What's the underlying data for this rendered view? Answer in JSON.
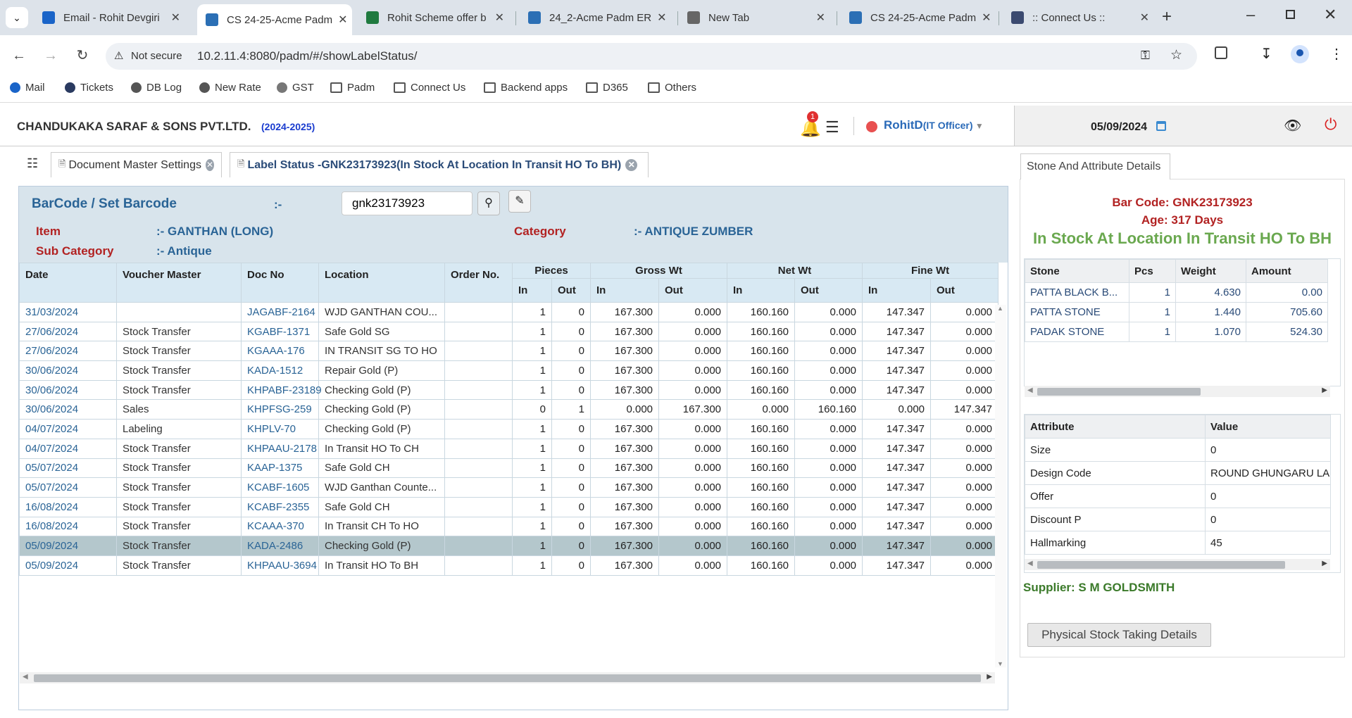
{
  "browser": {
    "tabs": [
      {
        "title": "Email - Rohit Devgiri",
        "fav": "#1a64c8"
      },
      {
        "title": "CS 24-25-Acme Padm",
        "fav": "#2b6fb5"
      },
      {
        "title": "Rohit Scheme offer b",
        "fav": "#1f7a3f"
      },
      {
        "title": "24_2-Acme Padm ER",
        "fav": "#2b6fb5"
      },
      {
        "title": "New Tab",
        "fav": "#666"
      },
      {
        "title": "CS 24-25-Acme Padm",
        "fav": "#2b6fb5"
      },
      {
        "title": ":: Connect Us ::",
        "fav": "#3b4a70"
      }
    ],
    "security": "Not secure",
    "url": "10.2.11.4:8080/padm/#/showLabelStatus/",
    "bookmarks": [
      "Mail",
      "Tickets",
      "DB Log",
      "New Rate",
      "GST",
      "Padm",
      "Connect Us",
      "Backend apps",
      "D365",
      "Others"
    ]
  },
  "header": {
    "company": "CHANDUKAKA SARAF & SONS PVT.LTD.",
    "year": "(2024-2025)",
    "notif_count": "1",
    "user": "RohitD",
    "role": "(IT Officer)",
    "date": "05/09/2024"
  },
  "apptabs": {
    "doc_master": "Document Master Settings",
    "label_status": "Label Status -GNK23173923(In Stock At Location In Transit HO To BH)"
  },
  "barcode": {
    "label": "BarCode / Set Barcode",
    "sep": ":-",
    "value": "gnk23173923",
    "item_label": "Item",
    "item_value": ":- GANTHAN (LONG)",
    "category_label": "Category",
    "category_value": ":- ANTIQUE ZUMBER",
    "subcat_label": "Sub Category",
    "subcat_value": ":- Antique"
  },
  "table": {
    "headers": {
      "date": "Date",
      "voucher": "Voucher Master",
      "doc": "Doc No",
      "location": "Location",
      "order": "Order No.",
      "pieces": "Pieces",
      "gross": "Gross Wt",
      "net": "Net Wt",
      "fine": "Fine Wt",
      "in": "In",
      "out": "Out"
    },
    "rows": [
      {
        "date": "31/03/2024",
        "voucher": "",
        "doc": "JAGABF-2164",
        "location": "WJD GANTHAN COU...",
        "order": "",
        "pin": "1",
        "pout": "0",
        "gin": "167.300",
        "gout": "0.000",
        "nin": "160.160",
        "nout": "0.000",
        "fin": "147.347",
        "fout": "0.000"
      },
      {
        "date": "27/06/2024",
        "voucher": "Stock Transfer",
        "doc": "KGABF-1371",
        "location": "Safe Gold SG",
        "order": "",
        "pin": "1",
        "pout": "0",
        "gin": "167.300",
        "gout": "0.000",
        "nin": "160.160",
        "nout": "0.000",
        "fin": "147.347",
        "fout": "0.000"
      },
      {
        "date": "27/06/2024",
        "voucher": "Stock Transfer",
        "doc": "KGAAA-176",
        "location": "IN TRANSIT SG TO HO",
        "order": "",
        "pin": "1",
        "pout": "0",
        "gin": "167.300",
        "gout": "0.000",
        "nin": "160.160",
        "nout": "0.000",
        "fin": "147.347",
        "fout": "0.000"
      },
      {
        "date": "30/06/2024",
        "voucher": "Stock Transfer",
        "doc": "KADA-1512",
        "location": "Repair Gold (P)",
        "order": "",
        "pin": "1",
        "pout": "0",
        "gin": "167.300",
        "gout": "0.000",
        "nin": "160.160",
        "nout": "0.000",
        "fin": "147.347",
        "fout": "0.000"
      },
      {
        "date": "30/06/2024",
        "voucher": "Stock Transfer",
        "doc": "KHPABF-23189",
        "location": "Checking Gold (P)",
        "order": "",
        "pin": "1",
        "pout": "0",
        "gin": "167.300",
        "gout": "0.000",
        "nin": "160.160",
        "nout": "0.000",
        "fin": "147.347",
        "fout": "0.000"
      },
      {
        "date": "30/06/2024",
        "voucher": "Sales",
        "doc": "KHPFSG-259",
        "location": "Checking Gold (P)",
        "order": "",
        "pin": "0",
        "pout": "1",
        "gin": "0.000",
        "gout": "167.300",
        "nin": "0.000",
        "nout": "160.160",
        "fin": "0.000",
        "fout": "147.347"
      },
      {
        "date": "04/07/2024",
        "voucher": "Labeling",
        "doc": "KHPLV-70",
        "location": "Checking Gold (P)",
        "order": "",
        "pin": "1",
        "pout": "0",
        "gin": "167.300",
        "gout": "0.000",
        "nin": "160.160",
        "nout": "0.000",
        "fin": "147.347",
        "fout": "0.000"
      },
      {
        "date": "04/07/2024",
        "voucher": "Stock Transfer",
        "doc": "KHPAAU-2178",
        "location": "In Transit HO To CH",
        "order": "",
        "pin": "1",
        "pout": "0",
        "gin": "167.300",
        "gout": "0.000",
        "nin": "160.160",
        "nout": "0.000",
        "fin": "147.347",
        "fout": "0.000"
      },
      {
        "date": "05/07/2024",
        "voucher": "Stock Transfer",
        "doc": "KAAP-1375",
        "location": "Safe Gold CH",
        "order": "",
        "pin": "1",
        "pout": "0",
        "gin": "167.300",
        "gout": "0.000",
        "nin": "160.160",
        "nout": "0.000",
        "fin": "147.347",
        "fout": "0.000"
      },
      {
        "date": "05/07/2024",
        "voucher": "Stock Transfer",
        "doc": "KCABF-1605",
        "location": "WJD Ganthan Counte...",
        "order": "",
        "pin": "1",
        "pout": "0",
        "gin": "167.300",
        "gout": "0.000",
        "nin": "160.160",
        "nout": "0.000",
        "fin": "147.347",
        "fout": "0.000"
      },
      {
        "date": "16/08/2024",
        "voucher": "Stock Transfer",
        "doc": "KCABF-2355",
        "location": "Safe Gold CH",
        "order": "",
        "pin": "1",
        "pout": "0",
        "gin": "167.300",
        "gout": "0.000",
        "nin": "160.160",
        "nout": "0.000",
        "fin": "147.347",
        "fout": "0.000"
      },
      {
        "date": "16/08/2024",
        "voucher": "Stock Transfer",
        "doc": "KCAAA-370",
        "location": "In Transit CH To HO",
        "order": "",
        "pin": "1",
        "pout": "0",
        "gin": "167.300",
        "gout": "0.000",
        "nin": "160.160",
        "nout": "0.000",
        "fin": "147.347",
        "fout": "0.000"
      },
      {
        "date": "05/09/2024",
        "voucher": "Stock Transfer",
        "doc": "KADA-2486",
        "location": "Checking Gold (P)",
        "order": "",
        "pin": "1",
        "pout": "0",
        "gin": "167.300",
        "gout": "0.000",
        "nin": "160.160",
        "nout": "0.000",
        "fin": "147.347",
        "fout": "0.000",
        "selected": true
      },
      {
        "date": "05/09/2024",
        "voucher": "Stock Transfer",
        "doc": "KHPAAU-3694",
        "location": "In Transit HO To BH",
        "order": "",
        "pin": "1",
        "pout": "0",
        "gin": "167.300",
        "gout": "0.000",
        "nin": "160.160",
        "nout": "0.000",
        "fin": "147.347",
        "fout": "0.000"
      }
    ]
  },
  "right": {
    "tab": "Stone And Attribute Details",
    "barcode_line": "Bar Code: GNK23173923",
    "age_line": "Age: 317 Days",
    "status_line": "In Stock At Location In Transit HO To BH",
    "stone_headers": [
      "Stone",
      "Pcs",
      "Weight",
      "Amount"
    ],
    "stones": [
      [
        "PATTA BLACK B...",
        "1",
        "4.630",
        "0.00"
      ],
      [
        "PATTA STONE",
        "1",
        "1.440",
        "705.60"
      ],
      [
        "PADAK STONE",
        "1",
        "1.070",
        "524.30"
      ]
    ],
    "attr_headers": [
      "Attribute",
      "Value"
    ],
    "attributes": [
      [
        "Size",
        "0"
      ],
      [
        "Design Code",
        "ROUND GHUNGARU LA"
      ],
      [
        "Offer",
        "0"
      ],
      [
        "Discount P",
        "0"
      ],
      [
        "Hallmarking",
        "45"
      ]
    ],
    "supplier": "Supplier: S M GOLDSMITH",
    "physical_btn": "Physical Stock Taking Details"
  },
  "colors": {
    "accent": "#2a6496",
    "label_red": "#b22222",
    "status_green": "#6aa84f",
    "supplier_green": "#3b7a2a",
    "selected_row": "#b4c7cc"
  }
}
